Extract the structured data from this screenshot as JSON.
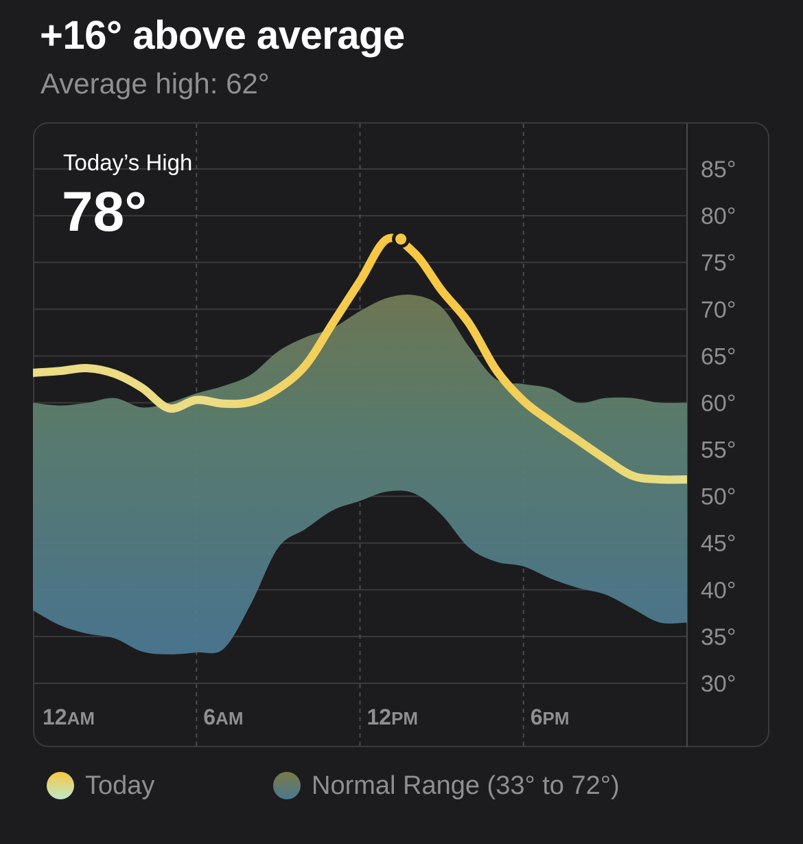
{
  "header": {
    "title": "+16° above average",
    "subtitle": "Average high: 62°"
  },
  "highlight": {
    "label": "Today’s High",
    "value": "78°"
  },
  "legend": {
    "today_label": "Today",
    "normal_label": "Normal Range (33° to 72°)"
  },
  "colors": {
    "background": "#1c1c1e",
    "today_line_peak": "#f7c843",
    "today_line_edge": "#e6e08a",
    "range_top": "#717a55",
    "range_bottom": "#4b7893",
    "grid": "#3a3a3c",
    "axis_text": "#8e8e93"
  },
  "chart_data": {
    "type": "area",
    "x_unit": "hour",
    "xlim": [
      0,
      24
    ],
    "ylim": [
      30,
      90
    ],
    "yticks": [
      85,
      80,
      75,
      70,
      65,
      60,
      55,
      50,
      45,
      40,
      35,
      30
    ],
    "ytick_labels": [
      "85°",
      "80°",
      "75°",
      "70°",
      "65°",
      "60°",
      "55°",
      "50°",
      "45°",
      "40°",
      "35°",
      "30°"
    ],
    "xticks": [
      {
        "x": 0,
        "main": "12",
        "suffix": "AM"
      },
      {
        "x": 6,
        "main": "6",
        "suffix": "AM"
      },
      {
        "x": 12,
        "main": "12",
        "suffix": "PM"
      },
      {
        "x": 18,
        "main": "6",
        "suffix": "PM"
      }
    ],
    "grid": true,
    "series": [
      {
        "name": "Today",
        "kind": "line",
        "x": [
          0,
          1,
          2,
          3,
          4,
          5,
          6,
          7,
          8,
          9,
          10,
          11,
          12,
          13,
          14,
          15,
          16,
          17,
          18,
          19,
          20,
          21,
          22,
          23,
          24
        ],
        "y": [
          63.2,
          63.4,
          63.7,
          63.1,
          61.6,
          59.4,
          60.3,
          59.9,
          60.1,
          61.5,
          64.0,
          68.5,
          73.0,
          77.5,
          76.0,
          72.0,
          68.5,
          63.5,
          60.2,
          58.0,
          56.0,
          54.0,
          52.2,
          51.8,
          51.8
        ]
      },
      {
        "name": "Normal Range",
        "kind": "band",
        "x": [
          0,
          1,
          2,
          3,
          4,
          5,
          6,
          7,
          8,
          9,
          10,
          11,
          12,
          13,
          14,
          15,
          16,
          17,
          18,
          19,
          20,
          21,
          22,
          23,
          24
        ],
        "high": [
          60.0,
          59.7,
          60.0,
          60.5,
          59.5,
          60.0,
          61.0,
          61.8,
          63.0,
          65.5,
          67.0,
          68.0,
          69.8,
          71.2,
          71.5,
          70.2,
          66.0,
          62.5,
          62.0,
          61.5,
          60.0,
          60.5,
          60.5,
          60.0,
          60.0
        ],
        "low": [
          37.8,
          36.2,
          35.3,
          34.8,
          33.4,
          33.1,
          33.3,
          33.7,
          38.5,
          44.5,
          46.5,
          48.5,
          49.5,
          50.5,
          50.3,
          48.0,
          44.5,
          43.0,
          42.5,
          41.2,
          40.2,
          39.5,
          38.0,
          36.5,
          36.5
        ]
      }
    ],
    "annotations": [
      {
        "type": "peak-marker",
        "series": "Today",
        "x": 13.5,
        "y": 77.5
      }
    ]
  }
}
